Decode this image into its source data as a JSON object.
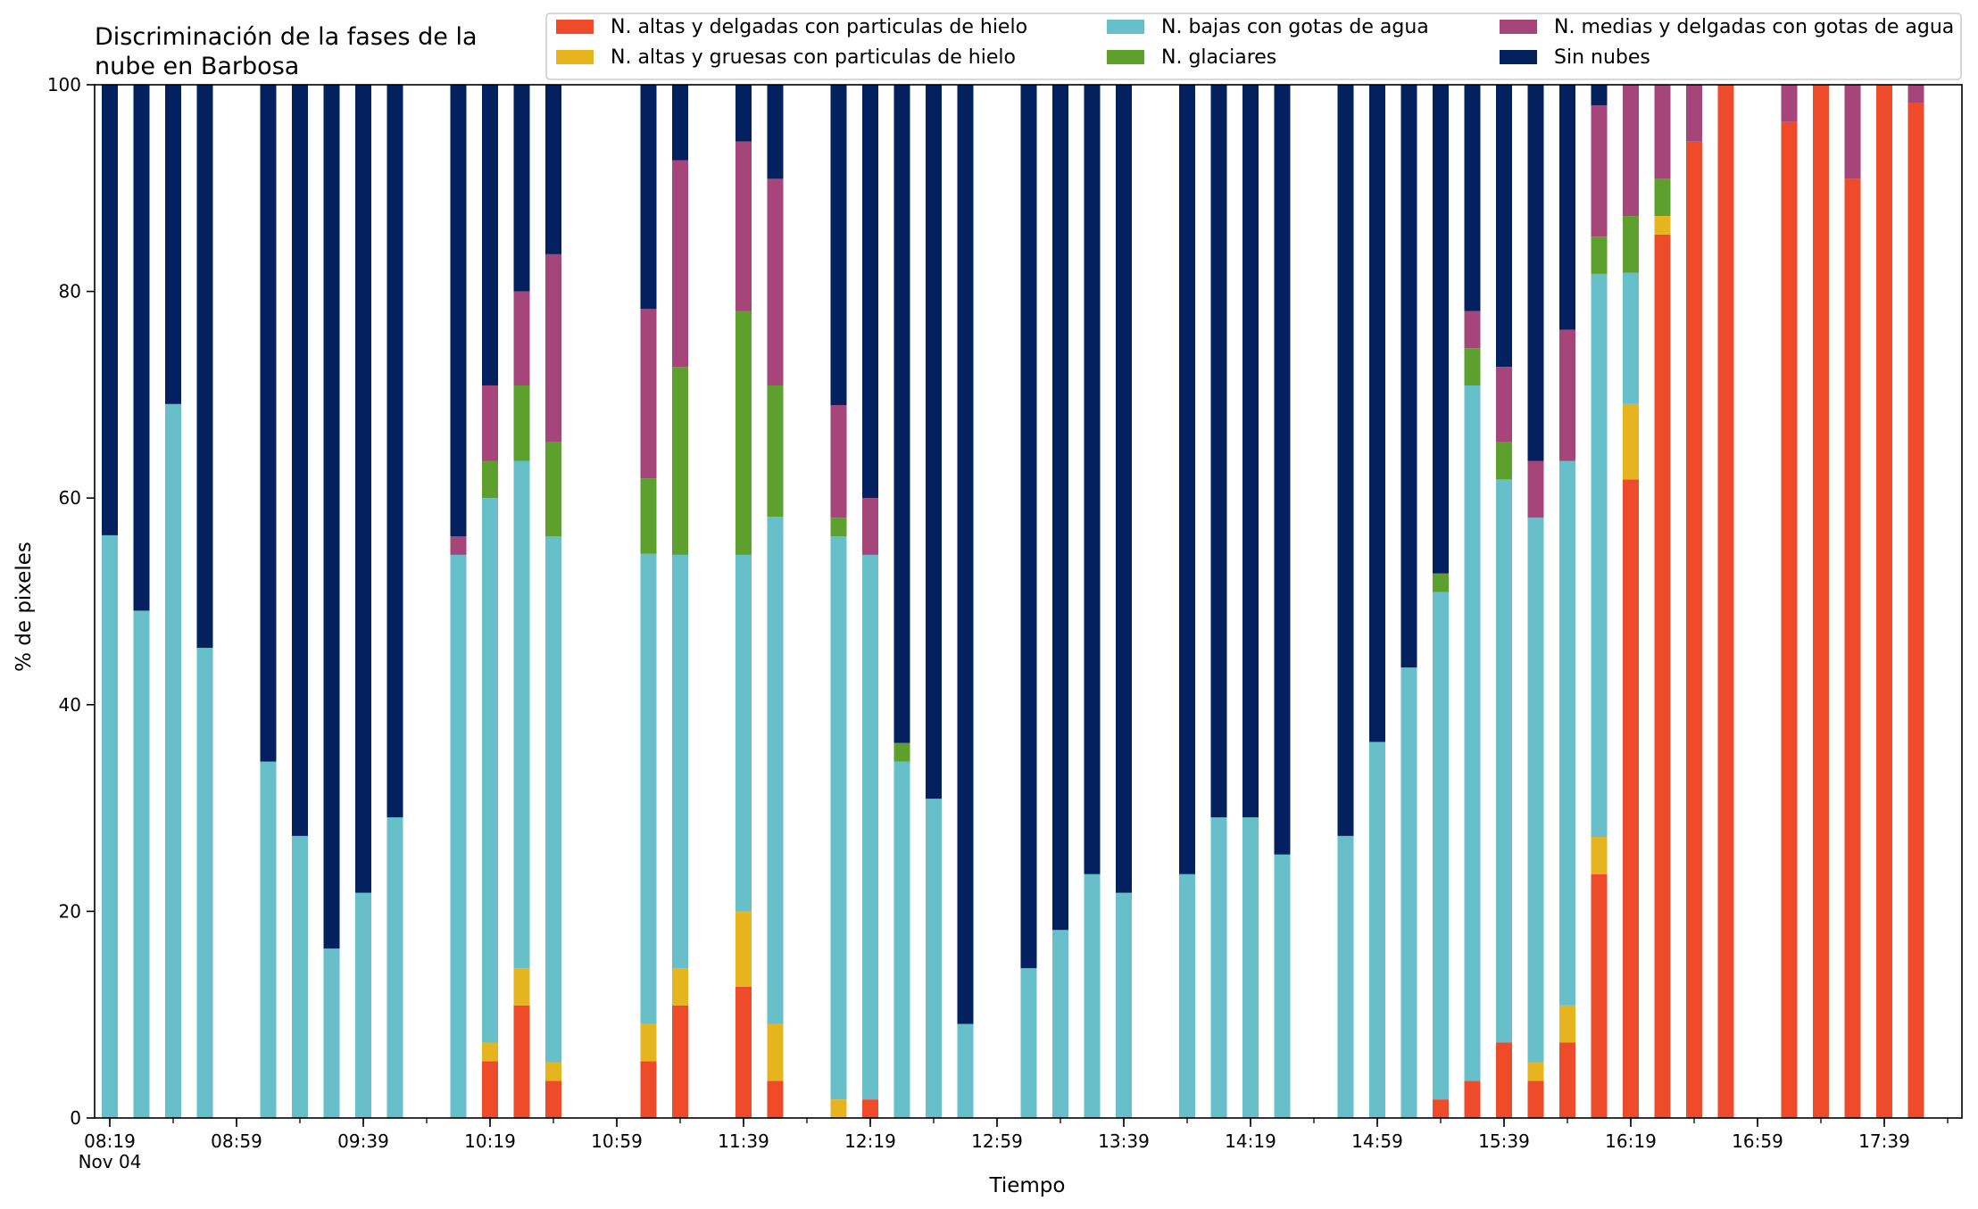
{
  "chart_data": {
    "type": "bar",
    "stacked": true,
    "title_lines": [
      "Discriminación de la fases de la",
      "nube en Barbosa"
    ],
    "xlabel": "Tiempo",
    "ylabel": "% de pixeles",
    "ylim": [
      0,
      100
    ],
    "yticks": [
      0,
      20,
      40,
      60,
      80,
      100
    ],
    "x_start": "08:19",
    "x_end": "17:59",
    "x_interval_minutes": 10,
    "xticks": [
      {
        "time": "08:19",
        "label": "08:19",
        "sublabel": "Nov 04"
      },
      {
        "time": "08:59",
        "label": "08:59"
      },
      {
        "time": "09:39",
        "label": "09:39"
      },
      {
        "time": "10:19",
        "label": "10:19"
      },
      {
        "time": "10:59",
        "label": "10:59"
      },
      {
        "time": "11:39",
        "label": "11:39"
      },
      {
        "time": "12:19",
        "label": "12:19"
      },
      {
        "time": "12:59",
        "label": "12:59"
      },
      {
        "time": "13:39",
        "label": "13:39"
      },
      {
        "time": "14:19",
        "label": "14:19"
      },
      {
        "time": "14:59",
        "label": "14:59"
      },
      {
        "time": "15:39",
        "label": "15:39"
      },
      {
        "time": "16:19",
        "label": "16:19"
      },
      {
        "time": "16:59",
        "label": "16:59"
      },
      {
        "time": "17:39",
        "label": "17:39"
      }
    ],
    "legend_position": "top-right",
    "legend": [
      {
        "key": "altas_delgadas",
        "label": "N. altas y delgadas con particulas de hielo"
      },
      {
        "key": "altas_gruesas",
        "label": "N. altas y gruesas con particulas de hielo"
      },
      {
        "key": "bajas",
        "label": "N. bajas con gotas de agua"
      },
      {
        "key": "glaciares",
        "label": "N. glaciares"
      },
      {
        "key": "medias",
        "label": "N. medias y delgadas con gotas de agua"
      },
      {
        "key": "sin_nubes",
        "label": "Sin nubes"
      }
    ],
    "stack_order": [
      "altas_delgadas",
      "altas_gruesas",
      "bajas",
      "glaciares",
      "medias",
      "sin_nubes"
    ],
    "colors": {
      "altas_delgadas": "#ee4b2b",
      "altas_gruesas": "#e6b41e",
      "bajas": "#66bfc9",
      "glaciares": "#5ea02d",
      "medias": "#a5457a",
      "sin_nubes": "#03205f"
    },
    "bars": [
      {
        "time": "08:19",
        "bajas": 56.4,
        "sin_nubes": 43.6
      },
      {
        "time": "08:29",
        "bajas": 49.1,
        "sin_nubes": 50.9
      },
      {
        "time": "08:39",
        "bajas": 69.1,
        "sin_nubes": 30.9
      },
      {
        "time": "08:49",
        "bajas": 45.5,
        "sin_nubes": 54.5
      },
      {
        "time": "09:09",
        "bajas": 34.5,
        "sin_nubes": 65.5
      },
      {
        "time": "09:19",
        "bajas": 27.3,
        "sin_nubes": 72.7
      },
      {
        "time": "09:29",
        "bajas": 16.4,
        "sin_nubes": 83.6
      },
      {
        "time": "09:39",
        "bajas": 21.8,
        "sin_nubes": 78.2
      },
      {
        "time": "09:49",
        "bajas": 29.1,
        "sin_nubes": 70.9
      },
      {
        "time": "10:09",
        "bajas": 54.5,
        "medias": 1.8,
        "sin_nubes": 43.7
      },
      {
        "time": "10:19",
        "altas_delgadas": 5.5,
        "altas_gruesas": 1.8,
        "bajas": 52.7,
        "glaciares": 3.6,
        "medias": 7.3,
        "sin_nubes": 29.1
      },
      {
        "time": "10:29",
        "altas_delgadas": 10.9,
        "altas_gruesas": 3.6,
        "bajas": 49.1,
        "glaciares": 7.3,
        "medias": 9.1,
        "sin_nubes": 20.0
      },
      {
        "time": "10:39",
        "altas_delgadas": 3.6,
        "altas_gruesas": 1.8,
        "bajas": 50.9,
        "glaciares": 9.1,
        "medias": 18.2,
        "sin_nubes": 16.4
      },
      {
        "time": "11:09",
        "altas_delgadas": 5.5,
        "altas_gruesas": 3.6,
        "bajas": 45.5,
        "glaciares": 7.3,
        "medias": 16.4,
        "sin_nubes": 21.7
      },
      {
        "time": "11:19",
        "altas_delgadas": 10.9,
        "altas_gruesas": 3.6,
        "bajas": 40.0,
        "glaciares": 18.2,
        "medias": 20.0,
        "sin_nubes": 7.3
      },
      {
        "time": "11:39",
        "altas_delgadas": 12.7,
        "altas_gruesas": 7.3,
        "bajas": 34.5,
        "glaciares": 23.6,
        "medias": 16.4,
        "sin_nubes": 5.5
      },
      {
        "time": "11:49",
        "altas_delgadas": 3.6,
        "altas_gruesas": 5.5,
        "bajas": 49.1,
        "glaciares": 12.7,
        "medias": 20.0,
        "sin_nubes": 9.1
      },
      {
        "time": "12:09",
        "altas_gruesas": 1.8,
        "bajas": 54.5,
        "glaciares": 1.8,
        "medias": 10.9,
        "sin_nubes": 31.0
      },
      {
        "time": "12:19",
        "altas_delgadas": 1.8,
        "bajas": 52.7,
        "medias": 5.5,
        "sin_nubes": 40.0
      },
      {
        "time": "12:29",
        "bajas": 34.5,
        "glaciares": 1.8,
        "sin_nubes": 63.7
      },
      {
        "time": "12:39",
        "bajas": 30.9,
        "sin_nubes": 69.1
      },
      {
        "time": "12:49",
        "bajas": 9.1,
        "sin_nubes": 90.9
      },
      {
        "time": "13:09",
        "bajas": 14.5,
        "sin_nubes": 85.5
      },
      {
        "time": "13:19",
        "bajas": 18.2,
        "sin_nubes": 81.8
      },
      {
        "time": "13:29",
        "bajas": 23.6,
        "sin_nubes": 76.4
      },
      {
        "time": "13:39",
        "bajas": 21.8,
        "sin_nubes": 78.2
      },
      {
        "time": "13:59",
        "bajas": 23.6,
        "sin_nubes": 76.4
      },
      {
        "time": "14:09",
        "bajas": 29.1,
        "sin_nubes": 70.9
      },
      {
        "time": "14:19",
        "bajas": 29.1,
        "sin_nubes": 70.9
      },
      {
        "time": "14:29",
        "bajas": 25.5,
        "sin_nubes": 74.5
      },
      {
        "time": "14:49",
        "bajas": 27.3,
        "sin_nubes": 72.7
      },
      {
        "time": "14:59",
        "bajas": 36.4,
        "sin_nubes": 63.6
      },
      {
        "time": "15:09",
        "bajas": 43.6,
        "sin_nubes": 56.4
      },
      {
        "time": "15:19",
        "altas_delgadas": 1.8,
        "bajas": 49.1,
        "glaciares": 1.8,
        "sin_nubes": 47.3
      },
      {
        "time": "15:29",
        "altas_delgadas": 3.6,
        "bajas": 67.3,
        "glaciares": 3.6,
        "medias": 3.6,
        "sin_nubes": 21.9
      },
      {
        "time": "15:39",
        "altas_delgadas": 7.3,
        "bajas": 54.5,
        "glaciares": 3.6,
        "medias": 7.3,
        "sin_nubes": 27.3
      },
      {
        "time": "15:49",
        "altas_delgadas": 3.6,
        "altas_gruesas": 1.8,
        "bajas": 52.7,
        "medias": 5.5,
        "sin_nubes": 36.4
      },
      {
        "time": "15:59",
        "altas_delgadas": 7.3,
        "altas_gruesas": 3.6,
        "bajas": 52.7,
        "medias": 12.7,
        "sin_nubes": 23.7
      },
      {
        "time": "16:09",
        "altas_delgadas": 23.6,
        "altas_gruesas": 3.6,
        "bajas": 54.5,
        "glaciares": 3.6,
        "medias": 12.7,
        "sin_nubes": 2.0
      },
      {
        "time": "16:19",
        "altas_delgadas": 61.8,
        "altas_gruesas": 7.3,
        "bajas": 12.7,
        "glaciares": 5.5,
        "medias": 12.7
      },
      {
        "time": "16:29",
        "altas_delgadas": 85.5,
        "altas_gruesas": 1.8,
        "glaciares": 3.6,
        "medias": 9.1
      },
      {
        "time": "16:39",
        "altas_delgadas": 94.5,
        "medias": 5.5
      },
      {
        "time": "16:49",
        "altas_delgadas": 100
      },
      {
        "time": "17:09",
        "altas_delgadas": 96.4,
        "medias": 3.6
      },
      {
        "time": "17:19",
        "altas_delgadas": 100
      },
      {
        "time": "17:29",
        "altas_delgadas": 90.9,
        "medias": 9.1
      },
      {
        "time": "17:39",
        "altas_delgadas": 100
      },
      {
        "time": "17:49",
        "altas_delgadas": 98.2,
        "medias": 1.8
      }
    ]
  }
}
